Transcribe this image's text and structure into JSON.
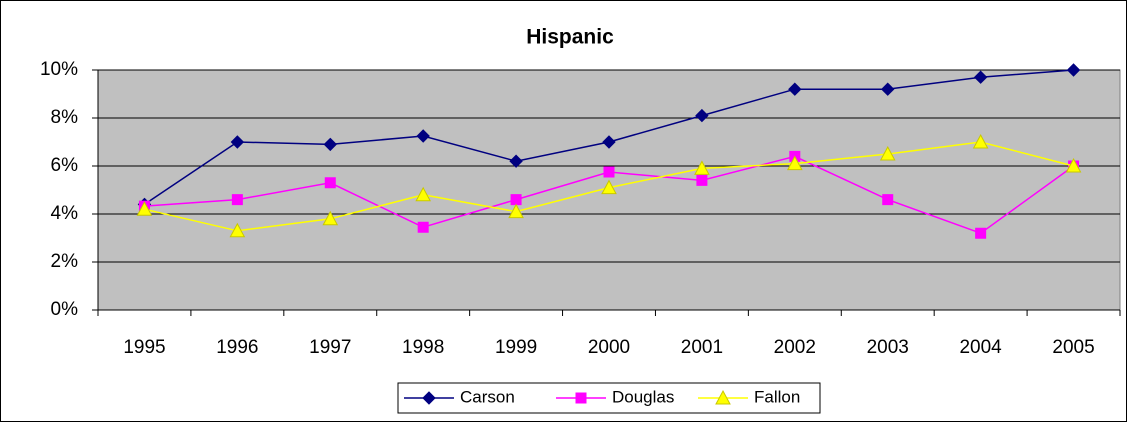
{
  "chart_data": {
    "type": "line",
    "title": "Hispanic",
    "categories": [
      "1995",
      "1996",
      "1997",
      "1998",
      "1999",
      "2000",
      "2001",
      "2002",
      "2003",
      "2004",
      "2005"
    ],
    "series": [
      {
        "name": "Carson",
        "color": "#000080",
        "marker": "diamond",
        "values": [
          4.4,
          7.0,
          6.9,
          7.25,
          6.2,
          7.0,
          8.1,
          9.2,
          9.2,
          9.7,
          10.0
        ]
      },
      {
        "name": "Douglas",
        "color": "#ff00ff",
        "marker": "square",
        "values": [
          4.33,
          4.6,
          5.3,
          3.45,
          4.6,
          5.75,
          5.4,
          6.4,
          4.6,
          3.2,
          6.0
        ]
      },
      {
        "name": "Fallon",
        "color": "#ffff00",
        "marker": "triangle",
        "values": [
          4.2,
          3.3,
          3.8,
          4.8,
          4.1,
          5.1,
          5.9,
          6.1,
          6.5,
          7.0,
          6.0
        ]
      }
    ],
    "ylim": [
      0,
      10
    ],
    "yticks": [
      {
        "value": 0,
        "label": "0%"
      },
      {
        "value": 2,
        "label": "2%"
      },
      {
        "value": 4,
        "label": "4%"
      },
      {
        "value": 6,
        "label": "6%"
      },
      {
        "value": 8,
        "label": "8%"
      },
      {
        "value": 10,
        "label": "10%"
      }
    ],
    "grid": true,
    "legend": "bottom"
  }
}
